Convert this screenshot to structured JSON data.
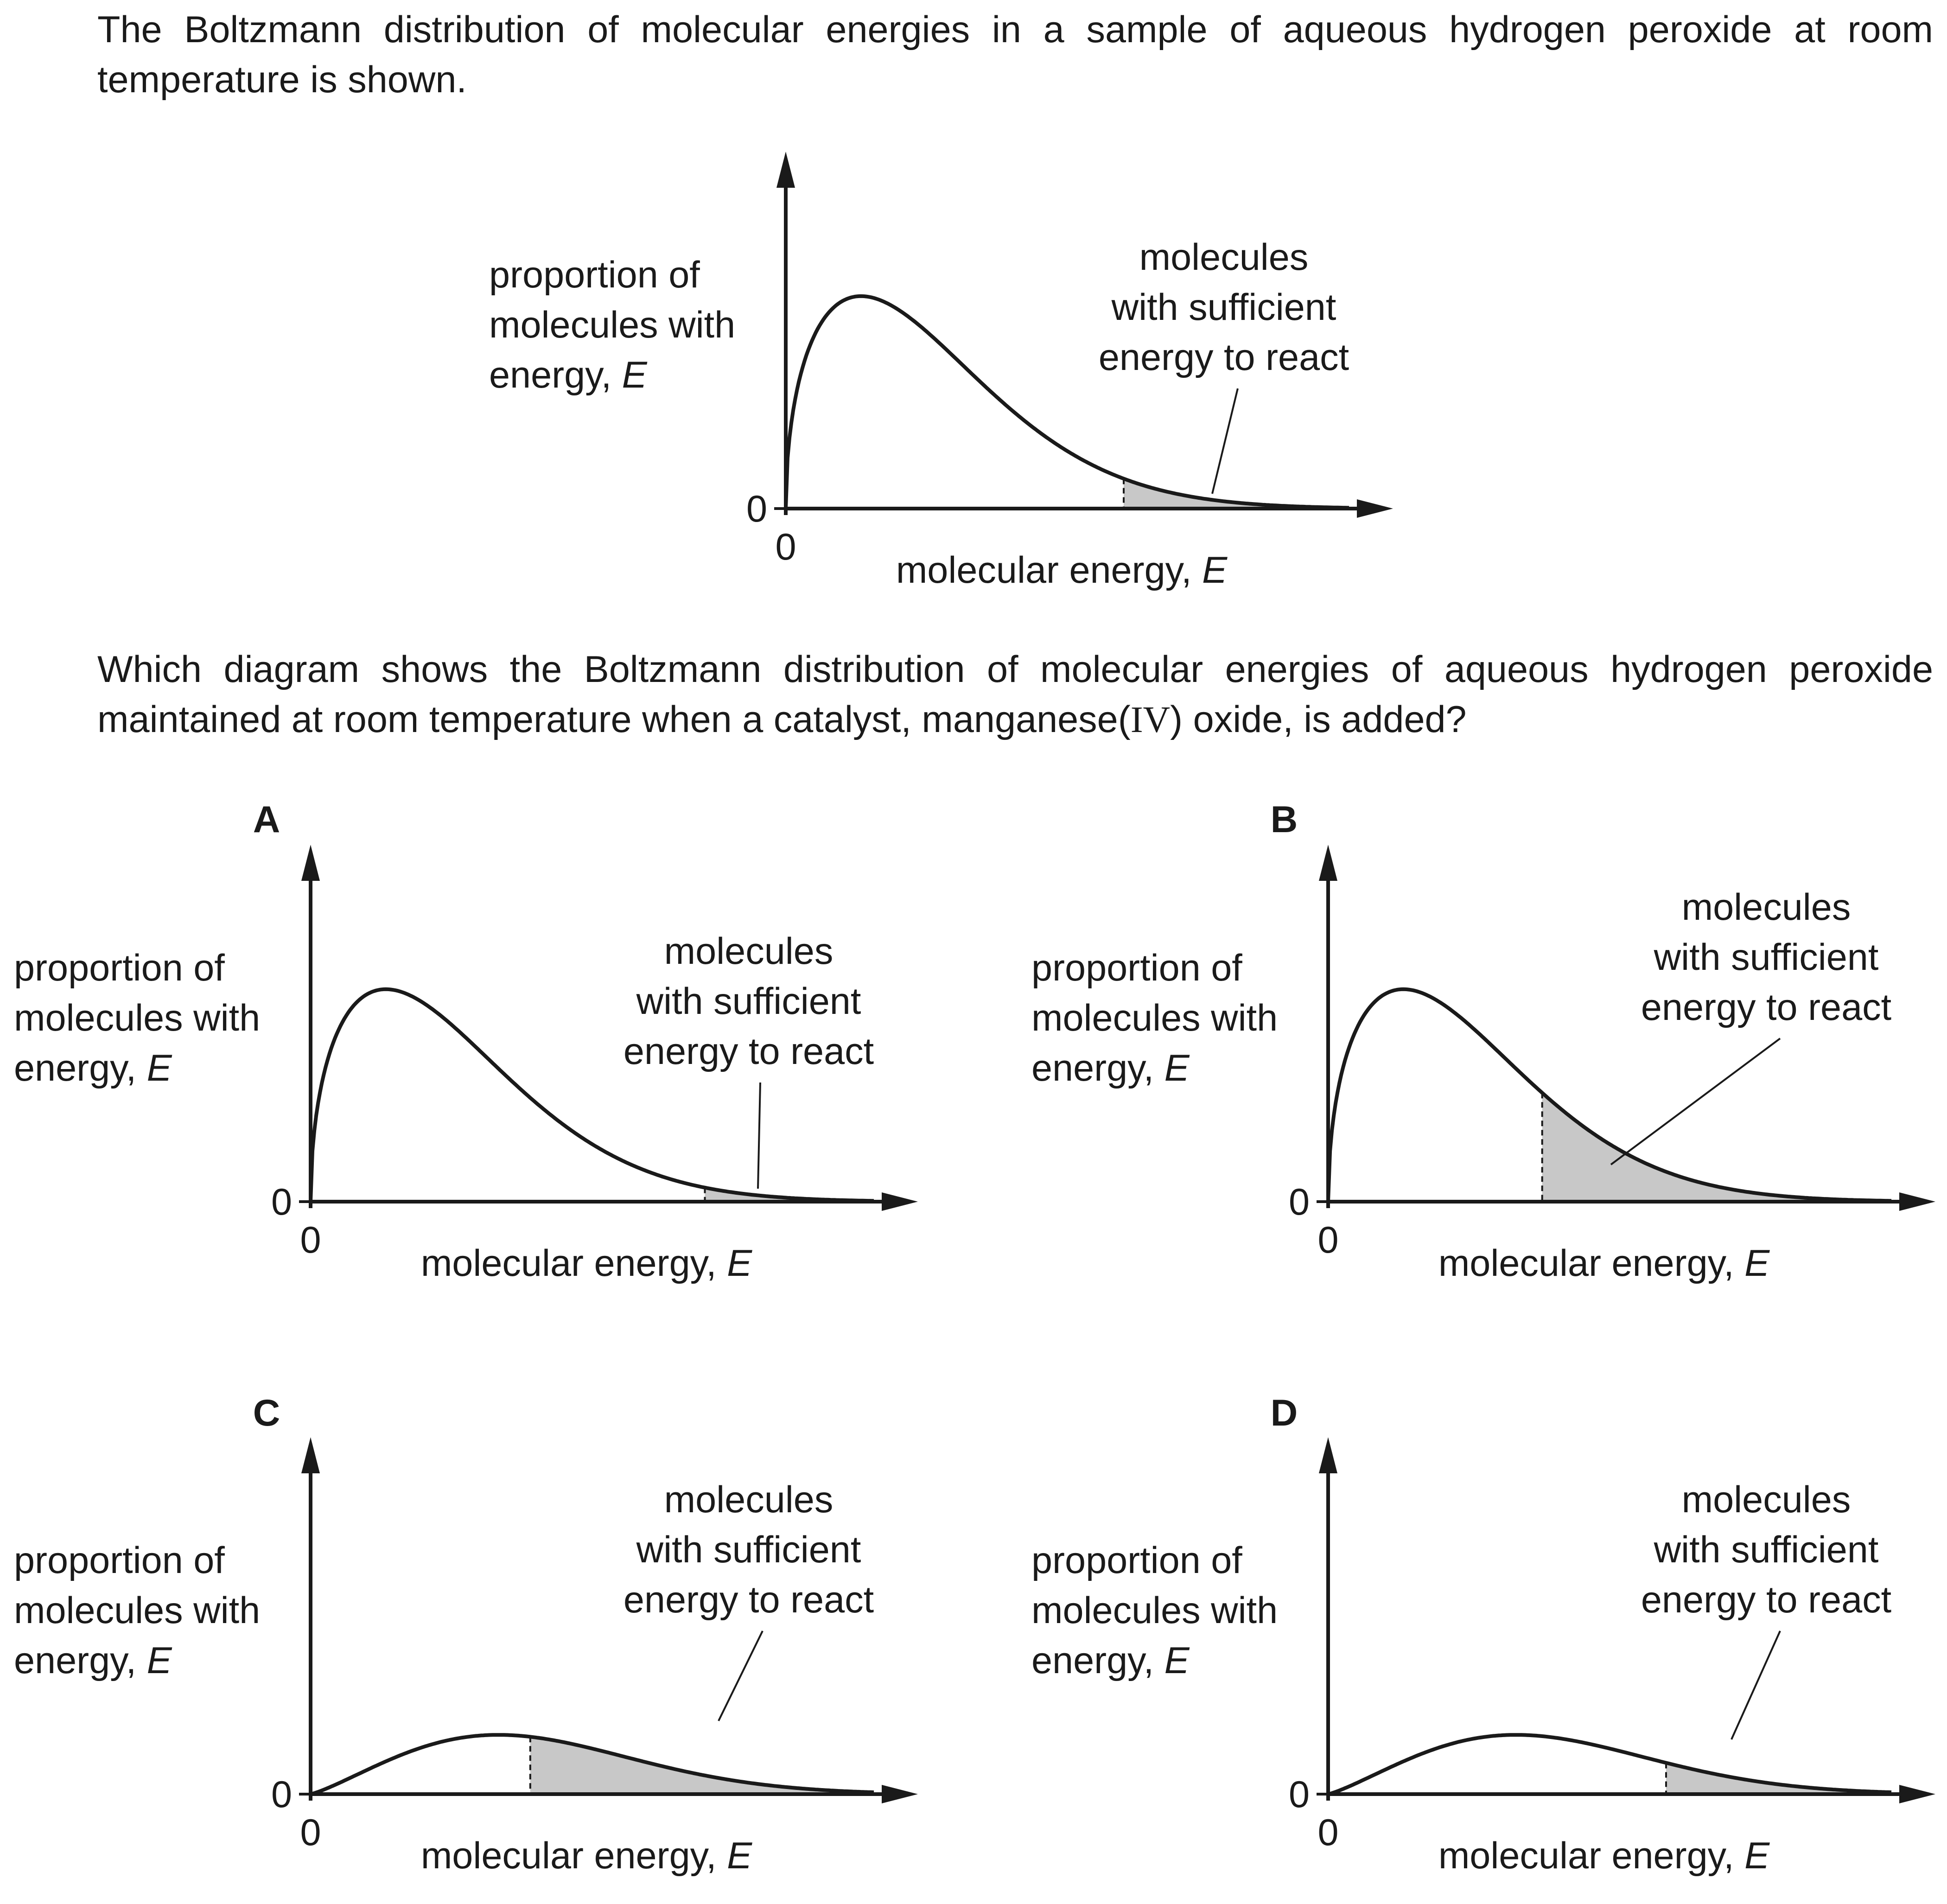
{
  "question": {
    "intro": "The Boltzmann distribution of molecular energies in a sample of aqueous hydrogen peroxide at room temperature is shown.",
    "prompt_before": "Which diagram shows the Boltzmann distribution of molecular energies of aqueous hydrogen peroxide maintained at room temperature when a catalyst, manganese(",
    "prompt_roman": "IV",
    "prompt_after": ") oxide, is added?"
  },
  "axis_text": {
    "y_label_lines": [
      "proportion of",
      "molecules with",
      "energy, "
    ],
    "y_label_italic": "E",
    "x_label": "molecular energy, ",
    "x_label_italic": "E",
    "origin_x": "0",
    "origin_y": "0"
  },
  "annotation_lines": [
    "molecules",
    "with sufficient",
    "energy to react"
  ],
  "diagrams": [
    {
      "id": "main",
      "letter": "",
      "curve": "narrow",
      "threshold": 0.6
    },
    {
      "id": "A",
      "letter": "A",
      "curve": "narrow",
      "threshold": 0.7
    },
    {
      "id": "B",
      "letter": "B",
      "curve": "narrow",
      "threshold": 0.38
    },
    {
      "id": "C",
      "letter": "C",
      "curve": "broad",
      "threshold": 0.39
    },
    {
      "id": "D",
      "letter": "D",
      "curve": "broad",
      "threshold": 0.6
    }
  ],
  "colors": {
    "ink": "#1a1a1a",
    "shade": "#c8c8c8"
  }
}
